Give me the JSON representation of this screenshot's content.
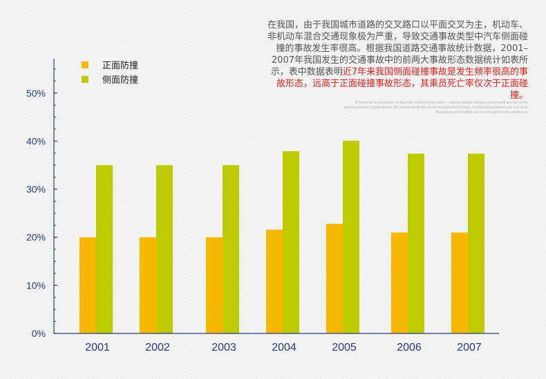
{
  "chart_data": {
    "type": "bar",
    "categories": [
      "2001",
      "2002",
      "2003",
      "2004",
      "2005",
      "2006",
      "2007"
    ],
    "series": [
      {
        "name": "正面防撞",
        "color": "#f6b900",
        "values": [
          20,
          20,
          20,
          21.6,
          22.8,
          21,
          21
        ]
      },
      {
        "name": "侧面防撞",
        "color": "#bdcc00",
        "values": [
          35,
          35,
          35,
          37.9,
          40.1,
          37.4,
          37.4
        ]
      }
    ],
    "ylim": [
      0,
      55
    ],
    "yticks": [
      "0%",
      "10%",
      "20%",
      "30%",
      "40%",
      "50%"
    ],
    "ytick_values": [
      0,
      10,
      20,
      30,
      40,
      50
    ],
    "legend_position": "top-left",
    "grid": false,
    "axis_color": "#2a3a7c"
  },
  "description": {
    "normal": "在我国，由于我国城市道路的交叉路口以平面交叉为主，机动车、非机动车混合交通现象极为严重，导致交通事故类型中汽车侧面碰撞的事故发生率很高。根据我国道路交通事故统计数据，2001–2007年我国发生的交通事故中的前两大事故形态数据统计如表所示，表中数据表明",
    "highlight": "近7年来我国侧面碰撞事故是发生频率很高的事故形态，远高于正面碰撞事故形态，其乘员死亡率仅次于正面碰撞。"
  },
  "fine_print": "At Britax we're committed we have the solution to the world – making parents embrace every week and two of the amazing journey of parenthood. We believe family life should be lived without limits. A world where parents are free to be themselves and children are free to explore with confidence."
}
